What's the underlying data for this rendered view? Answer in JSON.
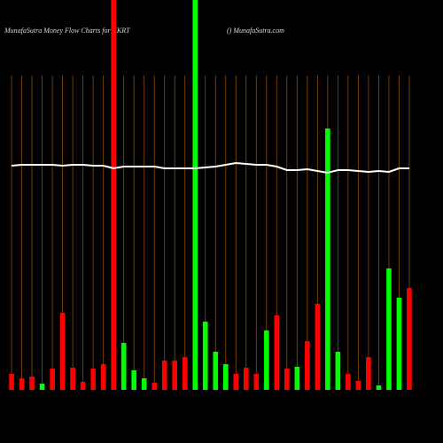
{
  "chart_data": {
    "type": "bar",
    "title": "MunafaSutra  Money Flow  Charts for KKRT",
    "subtitle": "() MunafaSutra.com",
    "categories": [
      null,
      null,
      null,
      null,
      null,
      null,
      null,
      null,
      null,
      null,
      null,
      null,
      null,
      null,
      null,
      null,
      null,
      null,
      null,
      null,
      null,
      null,
      null,
      null,
      null,
      null,
      null,
      null,
      null,
      null,
      null,
      null,
      null,
      null,
      null,
      null,
      null,
      null,
      null,
      null
    ],
    "values": [
      18,
      13,
      15,
      7,
      24,
      87,
      25,
      9,
      24,
      29,
      440,
      53,
      22,
      13,
      8,
      33,
      33,
      37,
      440,
      77,
      43,
      29,
      18,
      25,
      18,
      67,
      84,
      24,
      26,
      55,
      97,
      295,
      43,
      18,
      10,
      37,
      5,
      137,
      104,
      115
    ],
    "bar_colors": [
      "#ff0000",
      "#ff0000",
      "#ff0000",
      "#00ff00",
      "#ff0000",
      "#ff0000",
      "#ff0000",
      "#ff0000",
      "#ff0000",
      "#ff0000",
      "#ff0000",
      "#00ff00",
      "#00ff00",
      "#00ff00",
      "#ff0000",
      "#ff0000",
      "#ff0000",
      "#ff0000",
      "#00ff00",
      "#00ff00",
      "#00ff00",
      "#00ff00",
      "#ff0000",
      "#ff0000",
      "#ff0000",
      "#00ff00",
      "#ff0000",
      "#ff0000",
      "#00ff00",
      "#ff0000",
      "#ff0000",
      "#00ff00",
      "#00ff00",
      "#ff0000",
      "#ff0000",
      "#ff0000",
      "#00ff00",
      "#00ff00",
      "#00ff00",
      "#ff0000"
    ],
    "line": {
      "values": [
        253,
        254,
        254,
        254,
        254,
        253,
        254,
        254,
        253,
        253,
        250,
        252,
        252,
        252,
        252,
        250,
        250,
        250,
        250,
        251,
        252,
        254,
        256,
        255,
        254,
        254,
        252,
        248,
        248,
        249,
        247,
        245,
        248,
        248,
        247,
        246,
        247,
        246,
        250,
        250
      ],
      "color": "#ffffff"
    },
    "ylim": [
      0,
      440
    ],
    "grid": true,
    "grid_color": "#8b4a00"
  }
}
